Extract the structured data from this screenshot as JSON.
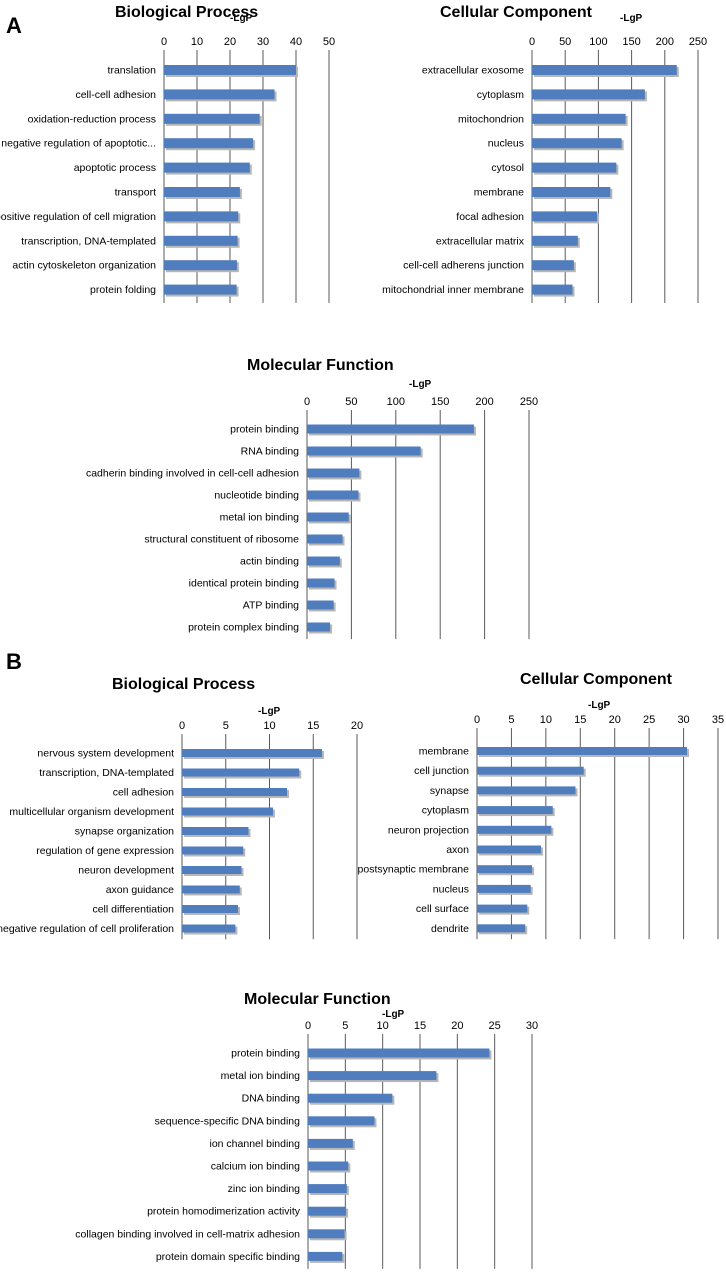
{
  "panels": [
    {
      "letter": "A"
    },
    {
      "letter": "B"
    }
  ],
  "chart_data": [
    {
      "panel": "A",
      "type": "bar",
      "orientation": "horizontal",
      "title": "Biological Process",
      "xlabel": "-LgP",
      "xlim": [
        0,
        50
      ],
      "ticks": [
        0,
        10,
        20,
        30,
        40,
        50
      ],
      "categories": [
        "translation",
        "cell-cell adhesion",
        "oxidation-reduction process",
        "negative regulation of apoptotic...",
        "apoptotic process",
        "transport",
        "positive regulation of cell migration",
        "transcription, DNA-templated",
        "actin cytoskeleton organization",
        "protein folding"
      ],
      "values": [
        40,
        33.5,
        29,
        27,
        26,
        23,
        22.5,
        22.3,
        22.1,
        22
      ]
    },
    {
      "panel": "A",
      "type": "bar",
      "orientation": "horizontal",
      "title": "Cellular Component",
      "xlabel": "-LgP",
      "xlim": [
        0,
        250
      ],
      "ticks": [
        0,
        50,
        100,
        150,
        200,
        250
      ],
      "categories": [
        "extracellular exosome",
        "cytoplasm",
        "mitochondrion",
        "nucleus",
        "cytosol",
        "membrane",
        "focal adhesion",
        "extracellular matrix",
        "cell-cell adherens junction",
        "mitochondrial inner membrane"
      ],
      "values": [
        218,
        170,
        141,
        135,
        127,
        118,
        98,
        69,
        63,
        61
      ]
    },
    {
      "panel": "A",
      "type": "bar",
      "orientation": "horizontal",
      "title": "Molecular Function",
      "xlabel": "-LgP",
      "xlim": [
        0,
        250
      ],
      "ticks": [
        0,
        50,
        100,
        150,
        200,
        250
      ],
      "categories": [
        "protein binding",
        "RNA binding",
        "cadherin binding involved in cell-cell adhesion",
        "nucleotide binding",
        "metal ion binding",
        "structural constituent of ribosome",
        "actin binding",
        "identical protein binding",
        "ATP binding",
        "protein complex binding"
      ],
      "values": [
        188,
        128,
        59,
        58,
        47,
        40,
        37,
        31,
        30,
        26
      ]
    },
    {
      "panel": "B",
      "type": "bar",
      "orientation": "horizontal",
      "title": "Biological Process",
      "xlabel": "-LgP",
      "xlim": [
        0,
        20
      ],
      "ticks": [
        0,
        5,
        10,
        15,
        20
      ],
      "categories": [
        "nervous system development",
        "transcription, DNA-templated",
        "cell adhesion",
        "multicellular organism development",
        "synapse organization",
        "regulation of gene expression",
        "neuron development",
        "axon guidance",
        "cell differentiation",
        "negative regulation of cell proliferation"
      ],
      "values": [
        16,
        13.4,
        12,
        10.4,
        7.6,
        7,
        6.8,
        6.6,
        6.4,
        6.1
      ]
    },
    {
      "panel": "B",
      "type": "bar",
      "orientation": "horizontal",
      "title": "Cellular Component",
      "xlabel": "-LgP",
      "xlim": [
        0,
        35
      ],
      "ticks": [
        0,
        5,
        10,
        15,
        20,
        25,
        30,
        35
      ],
      "categories": [
        "membrane",
        "cell junction",
        "synapse",
        "cytoplasm",
        "neuron projection",
        "axon",
        "postsynaptic membrane",
        "nucleus",
        "cell surface",
        "dendrite"
      ],
      "values": [
        30.5,
        15.5,
        14.3,
        11,
        10.8,
        9.3,
        8,
        7.8,
        7.3,
        7
      ]
    },
    {
      "panel": "B",
      "type": "bar",
      "orientation": "horizontal",
      "title": "Molecular Function",
      "xlabel": "-LgP",
      "xlim": [
        0,
        30
      ],
      "ticks": [
        0,
        5,
        10,
        15,
        20,
        25,
        30
      ],
      "categories": [
        "protein binding",
        "metal ion binding",
        "DNA binding",
        "sequence-specific DNA binding",
        "ion channel binding",
        "calcium ion binding",
        "zinc ion binding",
        "protein homodimerization activity",
        "collagen binding involved in cell-matrix adhesion",
        "protein domain specific binding"
      ],
      "values": [
        24.3,
        17.2,
        11.3,
        8.9,
        6,
        5.4,
        5.2,
        5.1,
        4.9,
        4.6
      ]
    }
  ]
}
